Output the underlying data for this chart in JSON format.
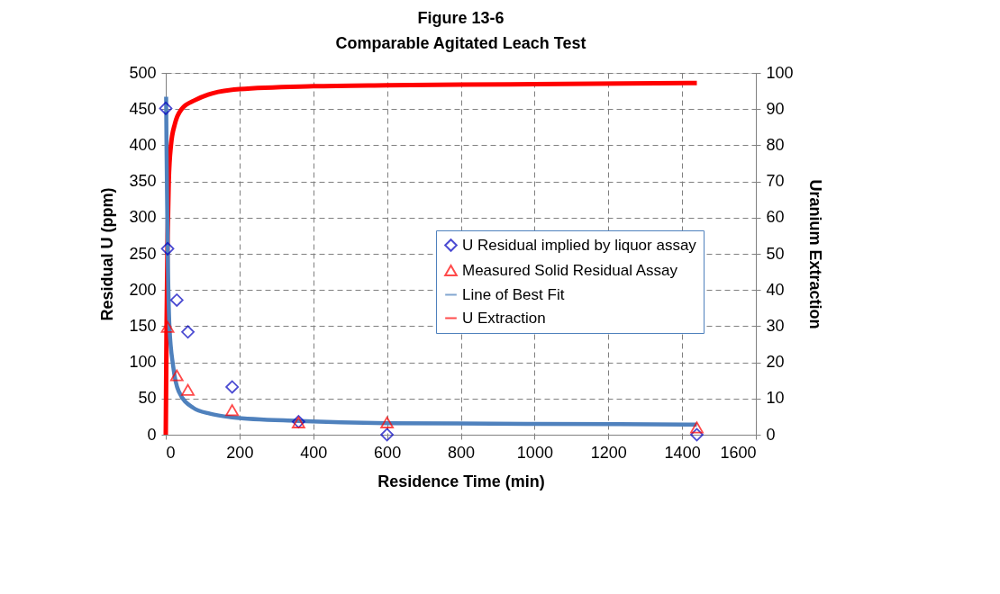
{
  "chart_data": {
    "type": "scatter",
    "title": "Figure 13-6",
    "subtitle": "Comparable Agitated Leach Test",
    "xlabel": "Residence Time (min)",
    "ylabel": "Residual U (ppm)",
    "y2label": "Uranium Extraction",
    "xlim": [
      0,
      1600
    ],
    "xticks": [
      0,
      200,
      400,
      600,
      800,
      1000,
      1200,
      1400,
      1600
    ],
    "ylim": [
      0,
      500
    ],
    "yticks": [
      0,
      50,
      100,
      150,
      200,
      250,
      300,
      350,
      400,
      450,
      500
    ],
    "y2lim": [
      0,
      100
    ],
    "y2ticks": [
      0,
      10,
      20,
      30,
      40,
      50,
      60,
      70,
      80,
      90,
      100
    ],
    "grid": true,
    "legend": "right",
    "series": [
      {
        "name": "U Residual implied by liquor assay",
        "marker": "diamond",
        "color": "#0000c0",
        "x": [
          0,
          5,
          30,
          60,
          180,
          360,
          600,
          1440
        ],
        "values": [
          451,
          257,
          186,
          142,
          66,
          18,
          0,
          0
        ]
      },
      {
        "name": "Measured Solid Residual Assay",
        "marker": "triangle",
        "color": "#ff0000",
        "x": [
          5,
          30,
          60,
          180,
          360,
          600,
          1440
        ],
        "values": [
          149,
          82,
          62,
          34,
          17,
          17,
          10
        ]
      },
      {
        "name": "Line of Best Fit",
        "type": "line",
        "color": "#4f81bd",
        "x": [
          1,
          2,
          5,
          10,
          20,
          35,
          75,
          120,
          180,
          360,
          600,
          1000,
          1440
        ],
        "values": [
          467,
          400,
          265,
          149,
          95,
          60,
          37,
          29,
          24,
          19,
          16,
          15,
          14
        ]
      },
      {
        "name": "U Extraction",
        "type": "line",
        "axis": "y2",
        "color": "#ff0000",
        "x": [
          0,
          2,
          5,
          8,
          14,
          25,
          43,
          80,
          115,
          200,
          400,
          600,
          1000,
          1440
        ],
        "values": [
          0,
          28,
          55,
          70,
          80,
          86,
          90,
          92.5,
          94,
          95.5,
          96.3,
          96.6,
          96.9,
          97.2
        ]
      }
    ]
  }
}
